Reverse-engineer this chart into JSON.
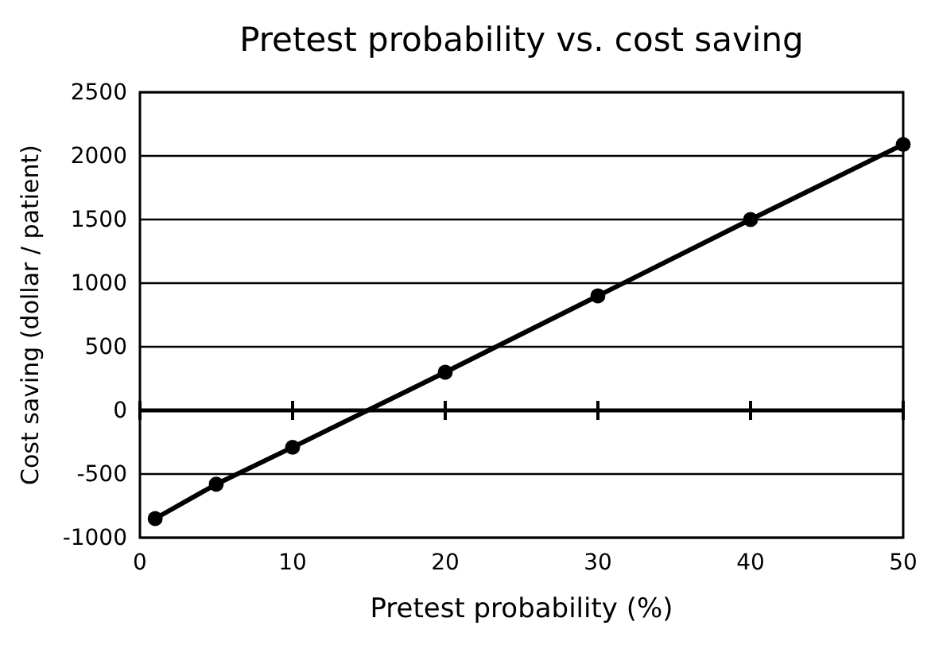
{
  "chart_data": {
    "type": "line",
    "title": "Pretest probability vs. cost saving",
    "xlabel": "Pretest probability (%)",
    "ylabel": "Cost saving (dollar / patient)",
    "x": [
      1,
      5,
      10,
      20,
      30,
      40,
      50
    ],
    "series": [
      {
        "color": "#000000",
        "values": [
          -850,
          -580,
          -290,
          300,
          900,
          1500,
          2090
        ]
      }
    ],
    "xlim": [
      0,
      50
    ],
    "xticks": [
      0,
      10,
      20,
      30,
      40,
      50
    ],
    "ylim": [
      -1000,
      2500
    ],
    "yticks": [
      -1000,
      -500,
      0,
      500,
      1000,
      1500,
      2000,
      2500
    ],
    "grid": "y",
    "marker": "circle",
    "line_style": "solid"
  }
}
